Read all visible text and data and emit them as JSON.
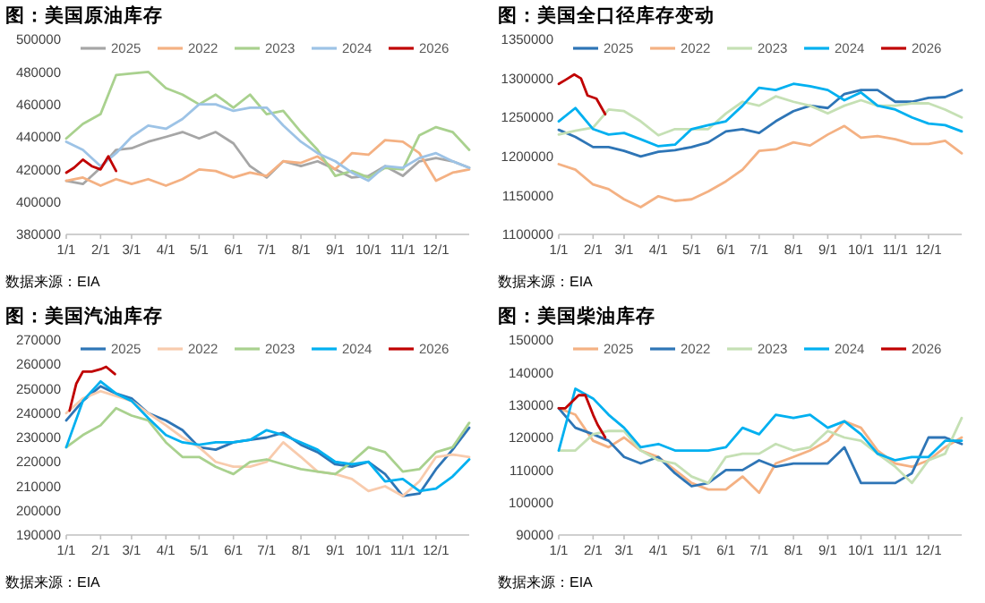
{
  "chart_data": [
    {
      "type": "line",
      "title": "图：美国原油库存",
      "x": [
        "--01-01",
        "--01-16",
        "--02-01",
        "--02-15",
        "--03-01",
        "--03-16",
        "--04-01",
        "--04-16",
        "--05-01",
        "--05-16",
        "--06-01",
        "--06-16",
        "--07-01",
        "--07-16",
        "--08-01",
        "--08-16",
        "--09-01",
        "--09-16",
        "--10-01",
        "--10-16",
        "--11-01",
        "--11-16",
        "--12-01",
        "--12-16",
        "--12-31"
      ],
      "xlim": [
        "--01-01",
        "--12-31"
      ],
      "xticks": [
        {
          "value": "--01-01",
          "label": "1/1"
        },
        {
          "value": "--02-01",
          "label": "2/1"
        },
        {
          "value": "--03-01",
          "label": "3/1"
        },
        {
          "value": "--04-01",
          "label": "4/1"
        },
        {
          "value": "--05-01",
          "label": "5/1"
        },
        {
          "value": "--06-01",
          "label": "6/1"
        },
        {
          "value": "--07-01",
          "label": "7/1"
        },
        {
          "value": "--08-01",
          "label": "8/1"
        },
        {
          "value": "--09-01",
          "label": "9/1"
        },
        {
          "value": "--10-01",
          "label": "10/1"
        },
        {
          "value": "--11-01",
          "label": "11/1"
        },
        {
          "value": "--12-01",
          "label": "12/1"
        }
      ],
      "ylim": [
        380000,
        500000
      ],
      "yticks": [
        380000,
        400000,
        420000,
        440000,
        460000,
        480000,
        500000
      ],
      "legend": "top",
      "annotations": [
        "数据来源：EIA"
      ],
      "series": [
        {
          "name": "2025",
          "color": "#a6a6a6",
          "values": [
            413000,
            411000,
            421000,
            432000,
            433000,
            437000,
            440000,
            443000,
            439000,
            443000,
            436000,
            422000,
            415000,
            425000,
            422000,
            425000,
            420000,
            415000,
            416000,
            422000,
            416000,
            425000,
            427000,
            425000,
            421000
          ]
        },
        {
          "name": "2022",
          "color": "#f4b183",
          "values": [
            413000,
            415000,
            410000,
            414000,
            411000,
            414000,
            410000,
            414000,
            420000,
            419000,
            415000,
            418000,
            416000,
            425000,
            424000,
            428000,
            420000,
            430000,
            429000,
            438000,
            437000,
            430000,
            413000,
            418000,
            420000
          ]
        },
        {
          "name": "2023",
          "color": "#a9d18e",
          "values": [
            439000,
            448000,
            454000,
            478000,
            479000,
            480000,
            470000,
            466000,
            460000,
            466000,
            458000,
            466000,
            454000,
            456000,
            443000,
            432000,
            416000,
            419000,
            415000,
            421000,
            420000,
            441000,
            446000,
            443000,
            432000
          ]
        },
        {
          "name": "2024",
          "color": "#9dc3e6",
          "values": [
            437000,
            432000,
            422000,
            430000,
            440000,
            447000,
            445000,
            451000,
            460000,
            460000,
            456000,
            458000,
            458000,
            447000,
            437000,
            430000,
            425000,
            418000,
            413000,
            422000,
            421000,
            427000,
            430000,
            425000,
            421000
          ]
        },
        {
          "name": "2026",
          "color": "#c00000",
          "x": [
            "--01-01",
            "--01-08",
            "--01-16",
            "--01-24",
            "--02-01",
            "--02-08",
            "--02-15"
          ],
          "values": [
            418000,
            421000,
            426000,
            422000,
            420000,
            428000,
            419000
          ]
        }
      ]
    },
    {
      "type": "line",
      "title": "图：美国全口径库存变动",
      "x": [
        "--01-01",
        "--01-16",
        "--02-01",
        "--02-15",
        "--03-01",
        "--03-16",
        "--04-01",
        "--04-16",
        "--05-01",
        "--05-16",
        "--06-01",
        "--06-16",
        "--07-01",
        "--07-16",
        "--08-01",
        "--08-16",
        "--09-01",
        "--09-16",
        "--10-01",
        "--10-16",
        "--11-01",
        "--11-16",
        "--12-01",
        "--12-16",
        "--12-31"
      ],
      "xlim": [
        "--01-01",
        "--12-31"
      ],
      "xticks": [
        {
          "value": "--01-01",
          "label": "1/1"
        },
        {
          "value": "--02-01",
          "label": "2/1"
        },
        {
          "value": "--03-01",
          "label": "3/1"
        },
        {
          "value": "--04-01",
          "label": "4/1"
        },
        {
          "value": "--05-01",
          "label": "5/1"
        },
        {
          "value": "--06-01",
          "label": "6/1"
        },
        {
          "value": "--07-01",
          "label": "7/1"
        },
        {
          "value": "--08-01",
          "label": "8/1"
        },
        {
          "value": "--09-01",
          "label": "9/1"
        },
        {
          "value": "--10-01",
          "label": "10/1"
        },
        {
          "value": "--11-01",
          "label": "11/1"
        },
        {
          "value": "--12-01",
          "label": "12/1"
        }
      ],
      "ylim": [
        1100000,
        1350000
      ],
      "yticks": [
        1100000,
        1150000,
        1200000,
        1250000,
        1300000,
        1350000
      ],
      "legend": "top",
      "annotations": [
        "数据来源：EIA"
      ],
      "series": [
        {
          "name": "2025",
          "color": "#2e75b6",
          "values": [
            1234000,
            1225000,
            1212000,
            1212000,
            1207000,
            1200000,
            1206000,
            1208000,
            1212000,
            1218000,
            1232000,
            1235000,
            1230000,
            1245000,
            1258000,
            1265000,
            1262000,
            1280000,
            1285000,
            1285000,
            1270000,
            1270000,
            1275000,
            1276000,
            1285000
          ]
        },
        {
          "name": "2022",
          "color": "#f4b183",
          "values": [
            1190000,
            1183000,
            1164000,
            1158000,
            1145000,
            1135000,
            1149000,
            1143000,
            1145000,
            1155000,
            1168000,
            1183000,
            1207000,
            1209000,
            1218000,
            1214000,
            1228000,
            1239000,
            1224000,
            1226000,
            1222000,
            1216000,
            1216000,
            1220000,
            1204000
          ]
        },
        {
          "name": "2023",
          "color": "#c5e0b4",
          "values": [
            1228000,
            1233000,
            1237000,
            1260000,
            1258000,
            1245000,
            1227000,
            1235000,
            1235000,
            1235000,
            1255000,
            1270000,
            1265000,
            1277000,
            1270000,
            1265000,
            1255000,
            1265000,
            1272000,
            1265000,
            1265000,
            1268000,
            1268000,
            1260000,
            1250000
          ]
        },
        {
          "name": "2024",
          "color": "#00b0f0",
          "values": [
            1245000,
            1262000,
            1235000,
            1228000,
            1230000,
            1222000,
            1213000,
            1215000,
            1235000,
            1240000,
            1245000,
            1265000,
            1288000,
            1285000,
            1293000,
            1290000,
            1285000,
            1272000,
            1282000,
            1265000,
            1260000,
            1250000,
            1242000,
            1240000,
            1232000
          ]
        },
        {
          "name": "2026",
          "color": "#c00000",
          "x": [
            "--01-01",
            "--01-07",
            "--01-15",
            "--01-21",
            "--01-27",
            "--02-04",
            "--02-12"
          ],
          "values": [
            1293000,
            1298000,
            1305000,
            1300000,
            1278000,
            1274000,
            1254000
          ]
        }
      ]
    },
    {
      "type": "line",
      "title": "图：美国汽油库存",
      "x": [
        "--01-01",
        "--01-16",
        "--02-01",
        "--02-15",
        "--03-01",
        "--03-16",
        "--04-01",
        "--04-16",
        "--05-01",
        "--05-16",
        "--06-01",
        "--06-16",
        "--07-01",
        "--07-16",
        "--08-01",
        "--08-16",
        "--09-01",
        "--09-16",
        "--10-01",
        "--10-16",
        "--11-01",
        "--11-16",
        "--12-01",
        "--12-16",
        "--12-31"
      ],
      "xlim": [
        "--01-01",
        "--12-31"
      ],
      "xticks": [
        {
          "value": "--01-01",
          "label": "1/1"
        },
        {
          "value": "--02-01",
          "label": "2/1"
        },
        {
          "value": "--03-01",
          "label": "3/1"
        },
        {
          "value": "--04-01",
          "label": "4/1"
        },
        {
          "value": "--05-01",
          "label": "5/1"
        },
        {
          "value": "--06-01",
          "label": "6/1"
        },
        {
          "value": "--07-01",
          "label": "7/1"
        },
        {
          "value": "--08-01",
          "label": "8/1"
        },
        {
          "value": "--09-01",
          "label": "9/1"
        },
        {
          "value": "--10-01",
          "label": "10/1"
        },
        {
          "value": "--11-01",
          "label": "11/1"
        },
        {
          "value": "--12-01",
          "label": "12/1"
        }
      ],
      "ylim": [
        190000,
        270000
      ],
      "yticks": [
        190000,
        200000,
        210000,
        220000,
        230000,
        240000,
        250000,
        260000,
        270000
      ],
      "legend": "top",
      "annotations": [
        "数据来源：EIA"
      ],
      "series": [
        {
          "name": "2025",
          "color": "#2e75b6",
          "values": [
            237000,
            245000,
            251000,
            248000,
            246000,
            240000,
            237000,
            233000,
            226000,
            225000,
            228000,
            229000,
            230000,
            232000,
            227000,
            224000,
            219000,
            218000,
            220000,
            215000,
            206000,
            207000,
            217000,
            225000,
            234000
          ]
        },
        {
          "name": "2022",
          "color": "#f8cbad",
          "values": [
            240000,
            246000,
            249000,
            247000,
            245000,
            240000,
            235000,
            230000,
            226000,
            220000,
            218000,
            218000,
            220000,
            228000,
            222000,
            216000,
            215000,
            213000,
            208000,
            210000,
            206000,
            212000,
            222000,
            223000,
            222000
          ]
        },
        {
          "name": "2023",
          "color": "#a9d18e",
          "values": [
            226000,
            231000,
            235000,
            242000,
            239000,
            237000,
            228000,
            222000,
            222000,
            218000,
            215000,
            220000,
            221000,
            219000,
            217000,
            216000,
            215000,
            220000,
            226000,
            224000,
            216000,
            217000,
            224000,
            226000,
            236000
          ]
        },
        {
          "name": "2024",
          "color": "#00b0f0",
          "values": [
            226000,
            245000,
            253000,
            248000,
            245000,
            238000,
            231000,
            228000,
            227000,
            228000,
            228000,
            229000,
            233000,
            231000,
            228000,
            225000,
            220000,
            219000,
            220000,
            212000,
            213000,
            208000,
            209000,
            214000,
            221000
          ]
        },
        {
          "name": "2026",
          "color": "#c00000",
          "x": [
            "--01-04",
            "--01-10",
            "--01-16",
            "--01-24",
            "--02-01",
            "--02-06",
            "--02-14"
          ],
          "values": [
            241000,
            252000,
            257000,
            257000,
            258000,
            259000,
            256000
          ]
        }
      ]
    },
    {
      "type": "line",
      "title": "图：美国柴油库存",
      "x": [
        "--01-01",
        "--01-16",
        "--02-01",
        "--02-15",
        "--03-01",
        "--03-16",
        "--04-01",
        "--04-16",
        "--05-01",
        "--05-16",
        "--06-01",
        "--06-16",
        "--07-01",
        "--07-16",
        "--08-01",
        "--08-16",
        "--09-01",
        "--09-16",
        "--10-01",
        "--10-16",
        "--11-01",
        "--11-16",
        "--12-01",
        "--12-16",
        "--12-31"
      ],
      "xlim": [
        "--01-01",
        "--12-31"
      ],
      "xticks": [
        {
          "value": "--01-01",
          "label": "1/1"
        },
        {
          "value": "--02-01",
          "label": "2/1"
        },
        {
          "value": "--03-01",
          "label": "3/1"
        },
        {
          "value": "--04-01",
          "label": "4/1"
        },
        {
          "value": "--05-01",
          "label": "5/1"
        },
        {
          "value": "--06-01",
          "label": "6/1"
        },
        {
          "value": "--07-01",
          "label": "7/1"
        },
        {
          "value": "--08-01",
          "label": "8/1"
        },
        {
          "value": "--09-01",
          "label": "9/1"
        },
        {
          "value": "--10-01",
          "label": "10/1"
        },
        {
          "value": "--11-01",
          "label": "11/1"
        },
        {
          "value": "--12-01",
          "label": "12/1"
        }
      ],
      "ylim": [
        90000,
        150000
      ],
      "yticks": [
        90000,
        100000,
        110000,
        120000,
        130000,
        140000,
        150000
      ],
      "legend": "top",
      "annotations": [
        "数据来源：EIA"
      ],
      "series": [
        {
          "name": "2025",
          "color": "#f4b183",
          "values": [
            129000,
            127000,
            119000,
            117000,
            120000,
            116000,
            114000,
            110000,
            106000,
            104000,
            104000,
            108000,
            103000,
            112000,
            114000,
            116000,
            119000,
            125000,
            123000,
            116000,
            112000,
            111000,
            113000,
            117000,
            120000
          ]
        },
        {
          "name": "2022",
          "color": "#2e75b6",
          "values": [
            129000,
            123000,
            121000,
            119000,
            114000,
            112000,
            114000,
            109000,
            105000,
            106000,
            110000,
            110000,
            113000,
            111000,
            112000,
            112000,
            112000,
            117000,
            106000,
            106000,
            106000,
            109000,
            120000,
            120000,
            118000
          ]
        },
        {
          "name": "2023",
          "color": "#c5e0b4",
          "values": [
            116000,
            116000,
            121000,
            122000,
            122000,
            116000,
            113000,
            112000,
            108000,
            106000,
            114000,
            115000,
            115000,
            118000,
            116000,
            117000,
            122000,
            120000,
            119000,
            115000,
            111000,
            106000,
            113000,
            115000,
            126000
          ]
        },
        {
          "name": "2024",
          "color": "#00b0f0",
          "values": [
            116000,
            135000,
            132000,
            127000,
            123000,
            117000,
            118000,
            116000,
            116000,
            116000,
            117000,
            123000,
            121000,
            127000,
            126000,
            127000,
            123000,
            125000,
            121000,
            115000,
            113000,
            114000,
            114000,
            119000,
            119000
          ]
        },
        {
          "name": "2026",
          "color": "#c00000",
          "x": [
            "--01-01",
            "--01-07",
            "--01-19",
            "--01-25",
            "--02-01",
            "--02-05",
            "--02-12"
          ],
          "values": [
            129000,
            129000,
            133000,
            133000,
            127000,
            124000,
            120000
          ]
        }
      ]
    }
  ]
}
